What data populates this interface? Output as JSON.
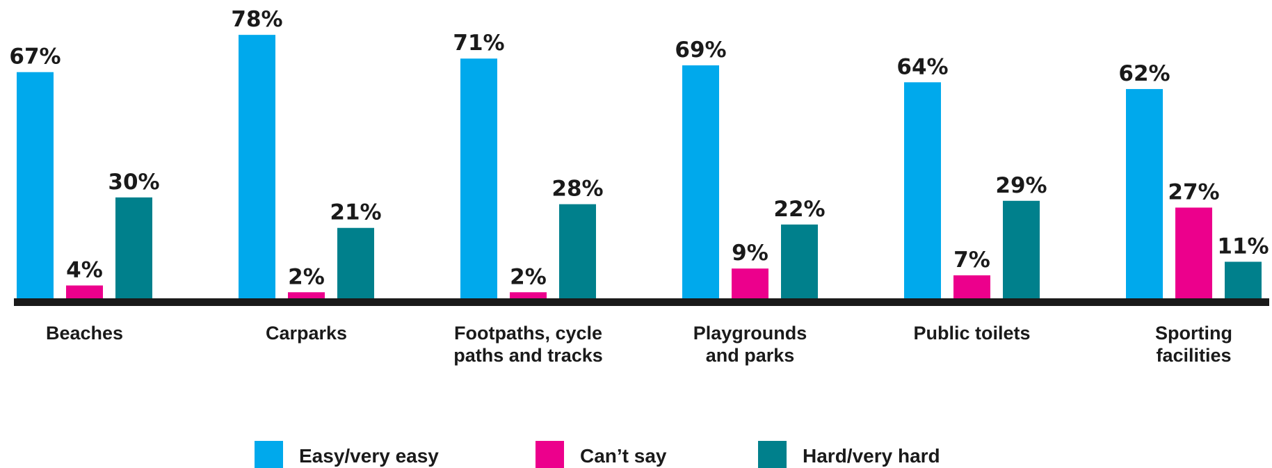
{
  "chart_data": {
    "type": "bar",
    "categories": [
      [
        "Beaches"
      ],
      [
        "Carparks"
      ],
      [
        "Footpaths, cycle",
        "paths and tracks"
      ],
      [
        "Playgrounds",
        "and parks"
      ],
      [
        "Public toilets"
      ],
      [
        "Sporting",
        "facilities"
      ]
    ],
    "series": [
      {
        "name": "Easy/very easy",
        "color": "#00a9ec",
        "values": [
          67,
          78,
          71,
          69,
          64,
          62
        ]
      },
      {
        "name": "Can’t say",
        "color": "#ec008c",
        "values": [
          4,
          2,
          2,
          9,
          7,
          27
        ]
      },
      {
        "name": "Hard/very hard",
        "color": "#00808c",
        "values": [
          30,
          21,
          28,
          22,
          29,
          11
        ]
      }
    ],
    "value_suffix": "%",
    "ylim": [
      0,
      80
    ],
    "grid": false,
    "legend_position": "bottom"
  }
}
